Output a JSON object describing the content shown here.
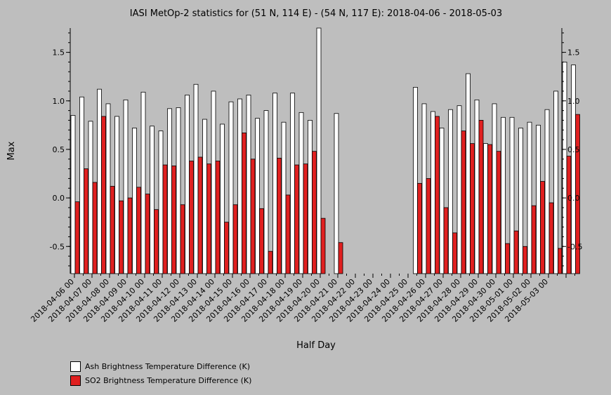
{
  "chart_data": {
    "type": "bar",
    "title": "IASI MetOp-2 statistics for (51 N, 114 E) - (54 N, 117 E): 2018-04-06 - 2018-05-03",
    "xlabel": "Half Day",
    "ylabel": "Max",
    "ylim": [
      -0.78,
      1.75
    ],
    "yticks": [
      -0.5,
      0.0,
      0.5,
      1.0,
      1.5
    ],
    "ytick_labels": [
      "-0.5",
      "0.0",
      "0.5",
      "1.0",
      "1.5"
    ],
    "grid": false,
    "legend_placement": "bottom-left",
    "day_labels": [
      "2018-04-06 00",
      "2018-04-07 00",
      "2018-04-08 00",
      "2018-04-09 00",
      "2018-04-10 00",
      "2018-04-11 00",
      "2018-04-12 00",
      "2018-04-13 00",
      "2018-04-14 00",
      "2018-04-15 00",
      "2018-04-16 00",
      "2018-04-17 00",
      "2018-04-18 00",
      "2018-04-19 00",
      "2018-04-20 00",
      "2018-04-21 00",
      "2018-04-22 00",
      "2018-04-23 00",
      "2018-04-24 00",
      "2018-04-25 00",
      "2018-04-26 00",
      "2018-04-27 00",
      "2018-04-28 00",
      "2018-04-29 00",
      "2018-04-30 00",
      "2018-05-01 00",
      "2018-05-02 00",
      "2018-05-03 00"
    ],
    "series": [
      {
        "name": "Ash Brightness Temperature Difference (K)",
        "color": "#ffffff",
        "values": [
          0.85,
          1.04,
          0.79,
          1.12,
          0.97,
          0.84,
          1.01,
          0.72,
          1.09,
          0.74,
          0.69,
          0.92,
          0.93,
          1.06,
          1.17,
          0.81,
          1.1,
          0.76,
          0.99,
          1.02,
          1.06,
          0.82,
          0.9,
          1.08,
          0.78,
          1.08,
          0.88,
          0.8,
          1.75,
          null,
          0.87,
          null,
          null,
          null,
          null,
          null,
          null,
          null,
          null,
          1.14,
          0.97,
          0.89,
          0.72,
          0.91,
          0.95,
          1.28,
          1.01,
          0.56,
          0.97,
          0.83,
          0.83,
          0.72,
          0.78,
          0.75,
          0.91,
          1.1,
          1.4,
          1.37
        ]
      },
      {
        "name": "SO2 Brightness Temperature Difference (K)",
        "color": "#e02020",
        "values": [
          -0.04,
          0.3,
          0.16,
          0.84,
          0.12,
          -0.03,
          0.0,
          0.11,
          0.04,
          -0.12,
          0.34,
          0.33,
          -0.07,
          0.38,
          0.42,
          0.35,
          0.38,
          -0.25,
          -0.07,
          0.67,
          0.4,
          -0.11,
          -0.55,
          0.41,
          0.03,
          0.34,
          0.35,
          0.48,
          -0.21,
          null,
          -0.46,
          null,
          null,
          null,
          null,
          null,
          null,
          null,
          null,
          0.15,
          0.2,
          0.84,
          -0.1,
          -0.36,
          0.69,
          0.56,
          0.8,
          0.55,
          0.48,
          -0.47,
          -0.34,
          -0.5,
          -0.08,
          0.17,
          -0.05,
          -0.52,
          0.43,
          0.86
        ]
      }
    ]
  }
}
